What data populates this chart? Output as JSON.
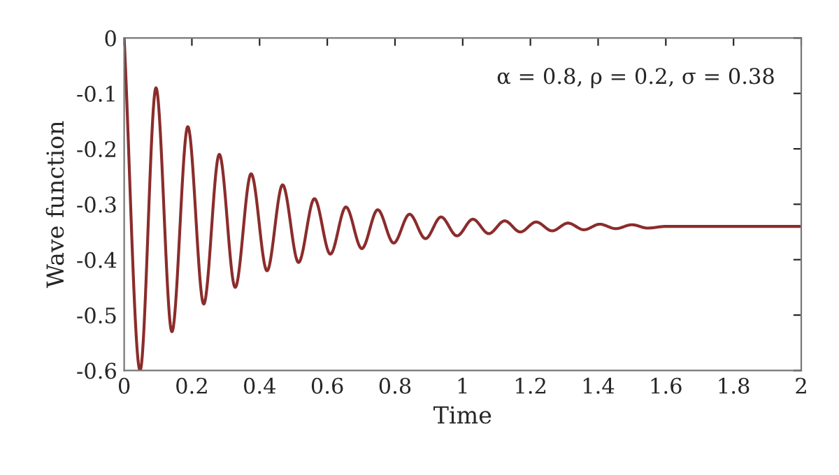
{
  "chart_data": {
    "type": "line",
    "xlabel": "Time",
    "ylabel": "Wave function",
    "annotations": [
      "α = 0.8, ρ = 0.2, σ = 0.38"
    ],
    "xlim": [
      0,
      2
    ],
    "ylim": [
      -0.6,
      0
    ],
    "xticks": [
      0,
      0.2,
      0.4,
      0.6,
      0.8,
      1,
      1.2,
      1.4,
      1.6,
      1.8,
      2
    ],
    "yticks": [
      -0.6,
      -0.5,
      -0.4,
      -0.3,
      -0.2,
      -0.1,
      0
    ],
    "grid": false,
    "legend": false,
    "marker": "none",
    "line_style": "solid",
    "series": [
      {
        "color": "#8b2c2c",
        "x": [
          0,
          0.047,
          0.094,
          0.141,
          0.188,
          0.235,
          0.281,
          0.328,
          0.375,
          0.422,
          0.468,
          0.515,
          0.562,
          0.609,
          0.655,
          0.702,
          0.749,
          0.796,
          0.843,
          0.89,
          0.936,
          0.983,
          1.03,
          1.077,
          1.124,
          1.17,
          1.217,
          1.264,
          1.311,
          1.358,
          1.405,
          1.452,
          1.5,
          1.546,
          1.6,
          2.0
        ],
        "values": [
          0,
          -0.6,
          -0.09,
          -0.53,
          -0.16,
          -0.48,
          -0.21,
          -0.45,
          -0.245,
          -0.42,
          -0.265,
          -0.405,
          -0.29,
          -0.39,
          -0.305,
          -0.38,
          -0.31,
          -0.37,
          -0.318,
          -0.362,
          -0.323,
          -0.357,
          -0.327,
          -0.353,
          -0.33,
          -0.35,
          -0.332,
          -0.348,
          -0.334,
          -0.346,
          -0.336,
          -0.344,
          -0.337,
          -0.343,
          -0.34,
          -0.34
        ]
      }
    ]
  }
}
